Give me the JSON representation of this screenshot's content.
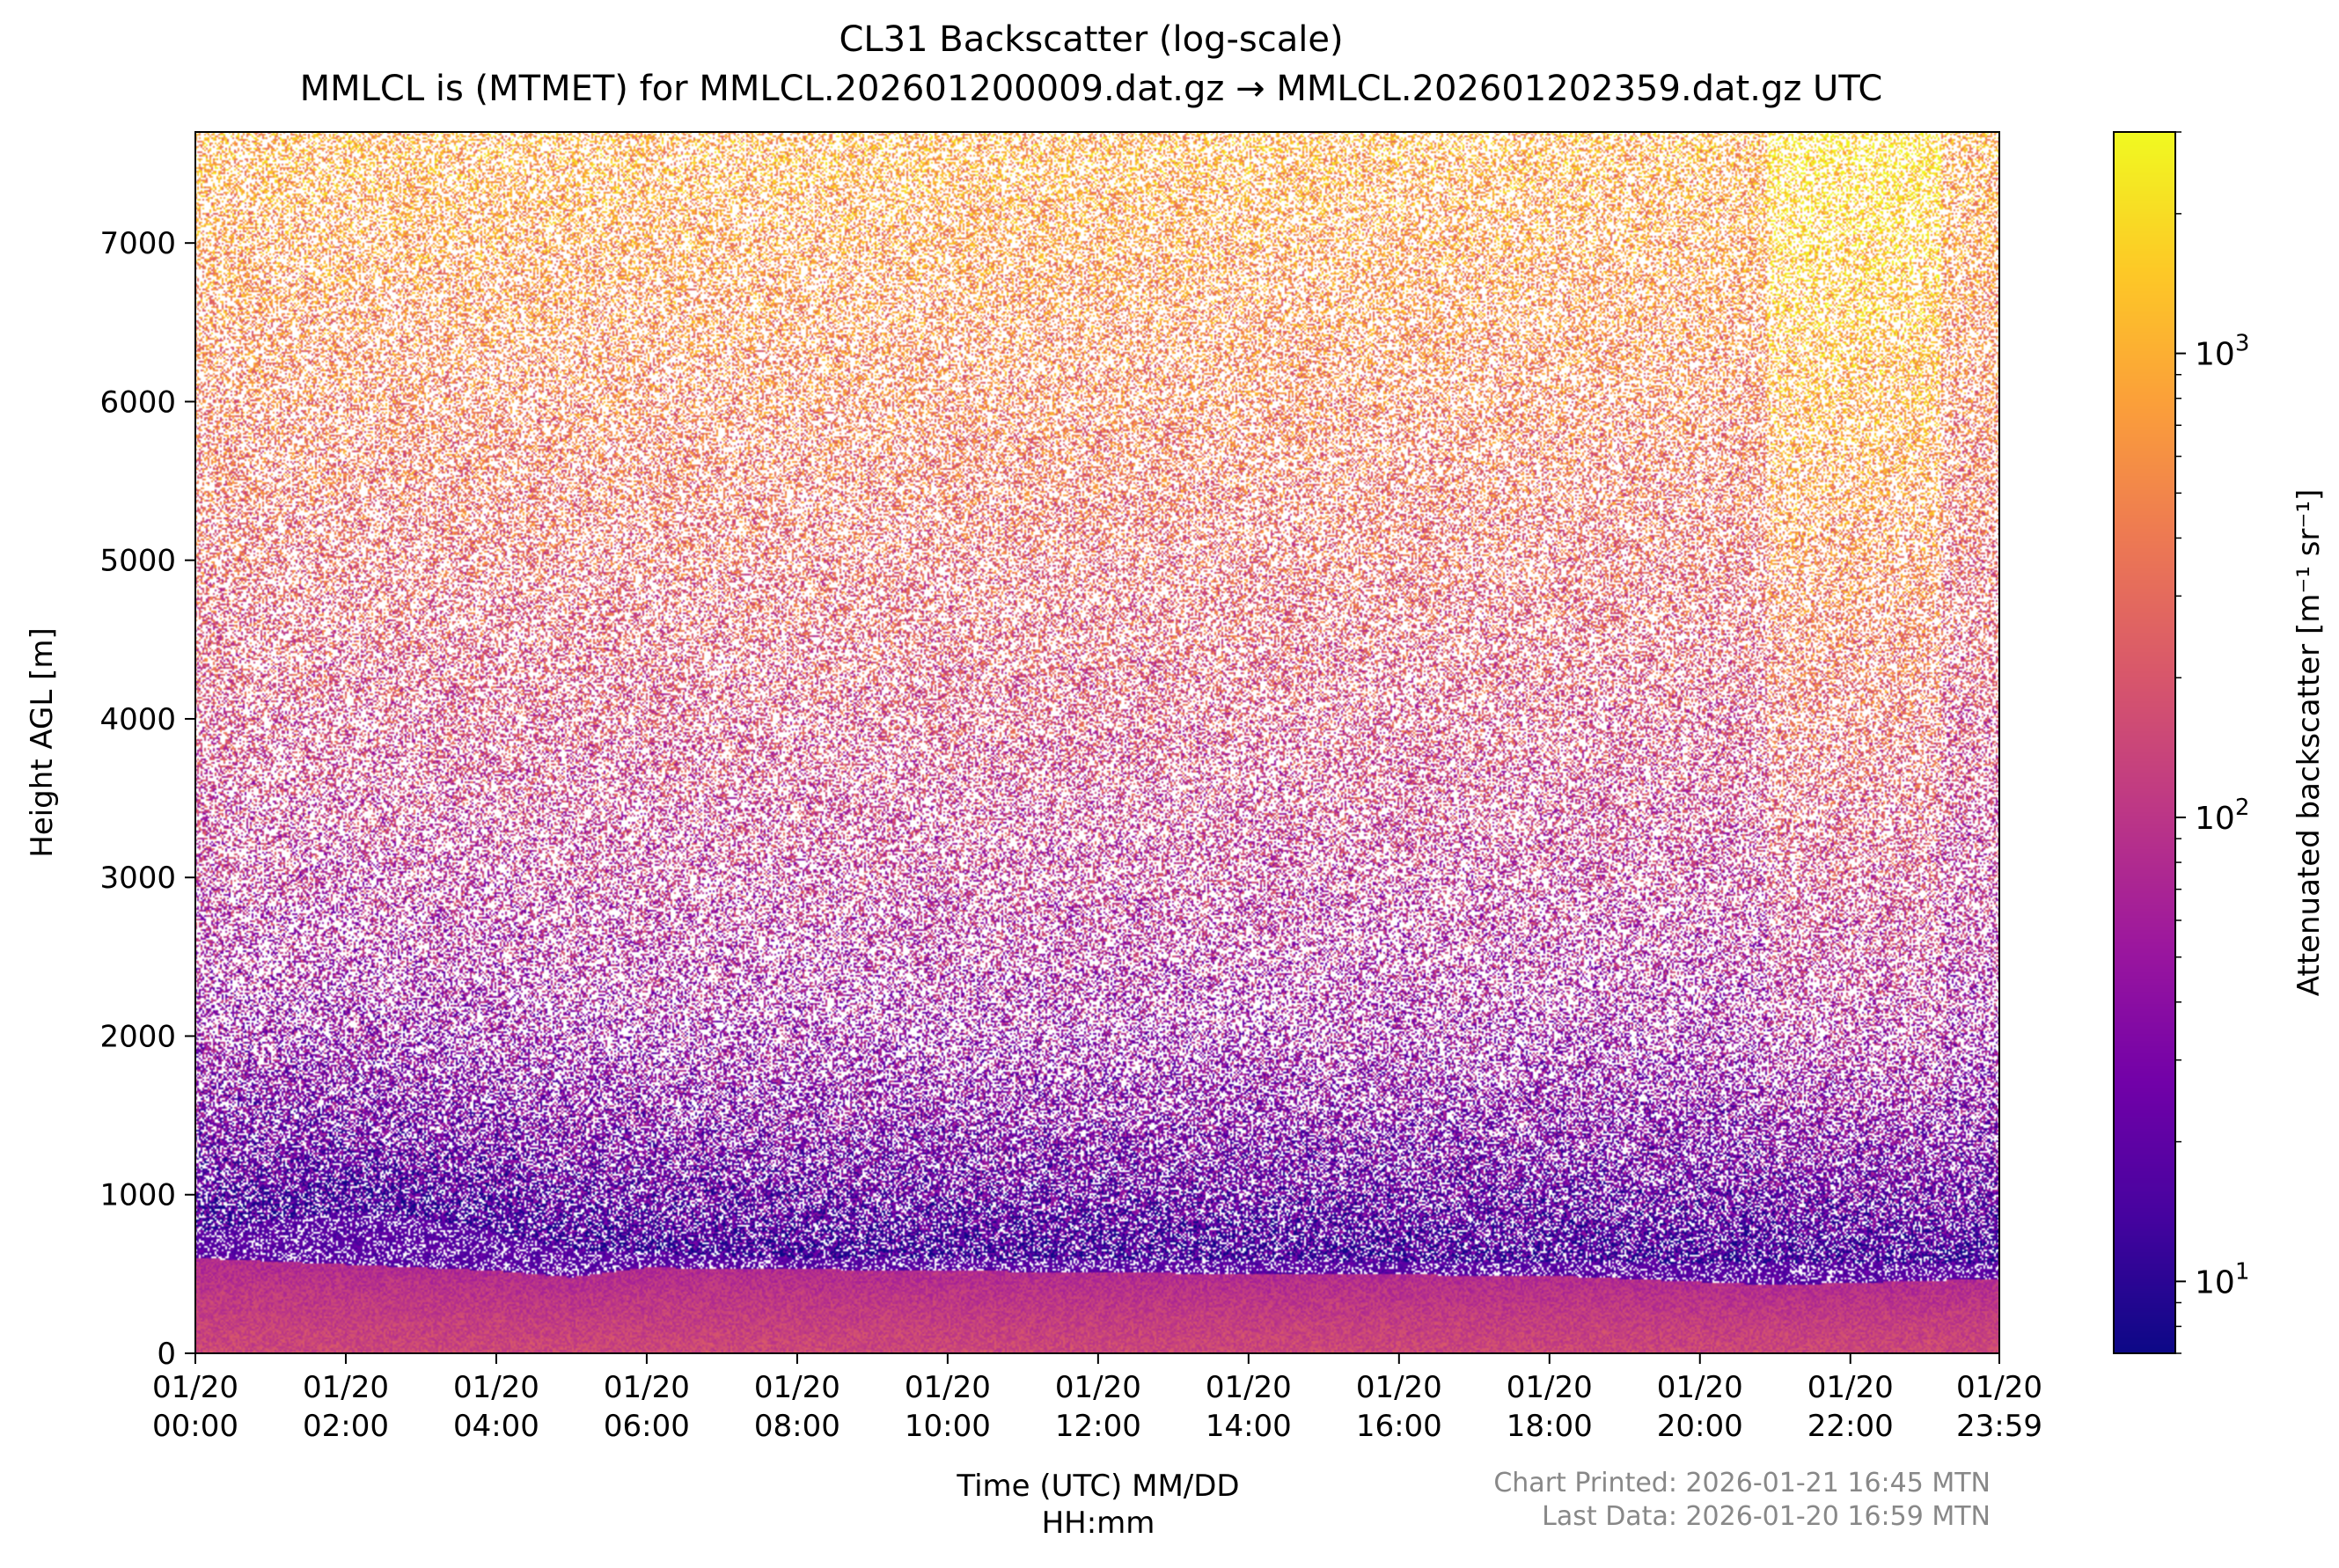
{
  "colors": {
    "colormap": "plasma",
    "colormap_stops": [
      "#0d0887",
      "#46039f",
      "#7201a8",
      "#9c179e",
      "#bd3786",
      "#d8576b",
      "#ed7953",
      "#fb9f3a",
      "#fdca26",
      "#f0f921"
    ],
    "footnote_color": "#888888"
  },
  "footer": {
    "printed": "Chart Printed: 2026-01-21 16:45 MTN",
    "last_data": "Last Data: 2026-01-20 16:59 MTN"
  },
  "chart_data": {
    "type": "heatmap",
    "title": "CL31 Backscatter (log-scale)",
    "subtitle": "MMLCL is (MTMET) for MMLCL.202601200009.dat.gz → MMLCL.202601202359.dat.gz UTC",
    "xlabel_line1": "Time (UTC) MM/DD",
    "xlabel_line2": "HH:mm",
    "ylabel": "Height AGL [m]",
    "colorbar_label": "Attenuated backscatter [m⁻¹ sr⁻¹]",
    "x_range_hours": [
      0,
      23.98
    ],
    "x_ticks": [
      {
        "hour": 0,
        "date": "01/20",
        "time": "00:00"
      },
      {
        "hour": 2,
        "date": "01/20",
        "time": "02:00"
      },
      {
        "hour": 4,
        "date": "01/20",
        "time": "04:00"
      },
      {
        "hour": 6,
        "date": "01/20",
        "time": "06:00"
      },
      {
        "hour": 8,
        "date": "01/20",
        "time": "08:00"
      },
      {
        "hour": 10,
        "date": "01/20",
        "time": "10:00"
      },
      {
        "hour": 12,
        "date": "01/20",
        "time": "12:00"
      },
      {
        "hour": 14,
        "date": "01/20",
        "time": "14:00"
      },
      {
        "hour": 16,
        "date": "01/20",
        "time": "16:00"
      },
      {
        "hour": 18,
        "date": "01/20",
        "time": "18:00"
      },
      {
        "hour": 20,
        "date": "01/20",
        "time": "20:00"
      },
      {
        "hour": 22,
        "date": "01/20",
        "time": "22:00"
      },
      {
        "hour": 23.98,
        "date": "01/20",
        "time": "23:59"
      }
    ],
    "y_range_m": [
      0,
      7700
    ],
    "y_ticks": [
      "0",
      "1000",
      "2000",
      "3000",
      "4000",
      "5000",
      "6000",
      "7000"
    ],
    "colorbar_scale": "log",
    "colorbar_range": [
      7,
      3000
    ],
    "colorbar_major_ticks": [
      {
        "value": 10,
        "base": "10",
        "exp": "1"
      },
      {
        "value": 100,
        "base": "10",
        "exp": "2"
      },
      {
        "value": 1000,
        "base": "10",
        "exp": "3"
      }
    ],
    "grid": false,
    "layers": {
      "surface_layer_top_m": [
        {
          "hour": 0,
          "m": 600
        },
        {
          "hour": 2,
          "m": 560
        },
        {
          "hour": 4,
          "m": 520
        },
        {
          "hour": 5,
          "m": 480
        },
        {
          "hour": 6,
          "m": 540
        },
        {
          "hour": 10,
          "m": 520
        },
        {
          "hour": 14,
          "m": 500
        },
        {
          "hour": 18,
          "m": 490
        },
        {
          "hour": 20,
          "m": 450
        },
        {
          "hour": 21,
          "m": 430
        },
        {
          "hour": 23.98,
          "m": 470
        }
      ],
      "surface_layer_backscatter": 150,
      "residual_layer_top_m": [
        {
          "hour": 0,
          "m": 760
        },
        {
          "hour": 2,
          "m": 900
        },
        {
          "hour": 3.5,
          "m": 820
        },
        {
          "hour": 5,
          "m": 650
        },
        {
          "hour": 8,
          "m": 600
        },
        {
          "hour": 23.98,
          "m": 560
        }
      ],
      "residual_layer_backscatter": 18,
      "noise_backscatter_at_ground": 12,
      "noise_backscatter_at_top": 900,
      "bright_noise_interval_hours": [
        20.9,
        23.2
      ],
      "bright_noise_backscatter_at_top": 2200
    }
  }
}
